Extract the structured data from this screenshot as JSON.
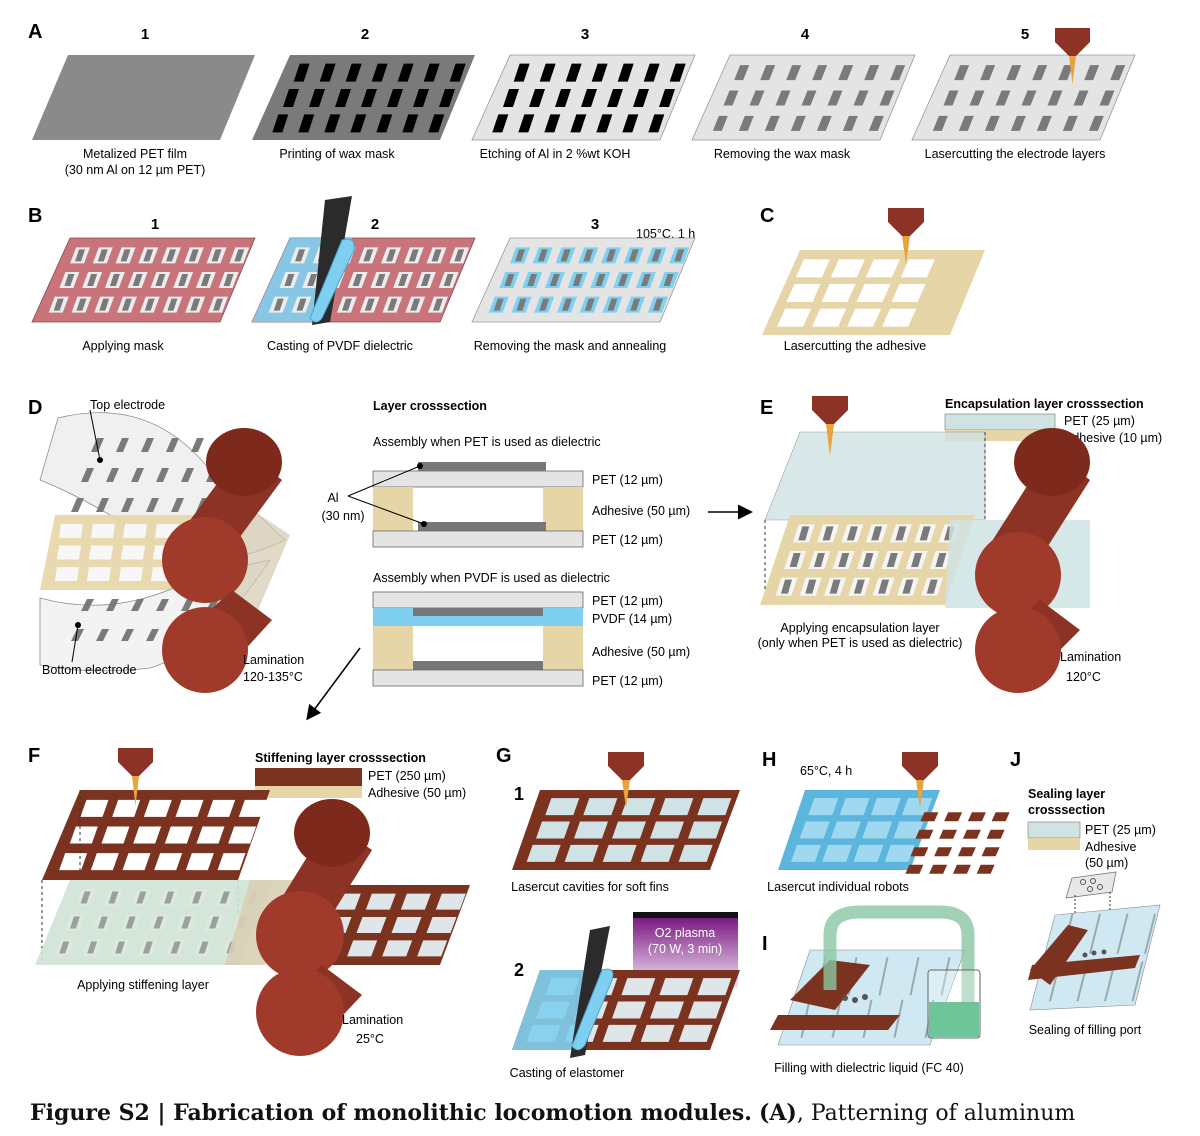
{
  "colors": {
    "metal": "#8a8a8a",
    "wax": "#000000",
    "film": "#e4e4e4",
    "electrode": "#7a7a7a",
    "mask": "#c9737b",
    "pvdf": "#7fcff0",
    "adhesive": "#e6d5a6",
    "stiff": "#7b3320",
    "roller": "#8c3325",
    "encap": "#cfe3e3",
    "plasma": "#7a1a82",
    "liquid": "#6fc59a"
  },
  "panels": {
    "A": {
      "label": "A",
      "steps": [
        {
          "num": "1",
          "caption": [
            "Metalized PET film",
            "(30 nm Al on 12 µm PET)"
          ]
        },
        {
          "num": "2",
          "caption": [
            "Printing of wax mask"
          ]
        },
        {
          "num": "3",
          "caption": [
            "Etching of Al in 2 %wt KOH"
          ]
        },
        {
          "num": "4",
          "caption": [
            "Removing the wax mask"
          ]
        },
        {
          "num": "5",
          "caption": [
            "Lasercutting the electrode layers"
          ]
        }
      ]
    },
    "B": {
      "label": "B",
      "steps": [
        {
          "num": "1",
          "caption": "Applying mask"
        },
        {
          "num": "2",
          "caption": "Casting of PVDF dielectric"
        },
        {
          "num": "3",
          "caption": "Removing the mask and annealing",
          "note": "105°C, 1 h"
        }
      ]
    },
    "C": {
      "label": "C",
      "caption": "Lasercutting the adhesive"
    },
    "D": {
      "label": "D",
      "top_electrode": "Top electrode",
      "bottom_electrode": "Bottom electrode",
      "lamination": [
        "Lamination",
        "120-135°C"
      ],
      "crosssection_title": "Layer crosssection",
      "pet_title": "Assembly when PET is used as dielectric",
      "pvdf_title": "Assembly when PVDF is used as dielectric",
      "al_label": [
        "Al",
        "(30 nm)"
      ],
      "pet_layers": [
        "PET (12 µm)",
        "Adhesive (50 µm)",
        "PET (12 µm)"
      ],
      "pvdf_layers": [
        "PET (12 µm)",
        "PVDF (14 µm)",
        "Adhesive (50 µm)",
        "PET (12 µm)"
      ]
    },
    "E": {
      "label": "E",
      "crosssection_title": "Encapsulation layer crosssection",
      "layers": [
        "PET (25 µm)",
        "Adhesive (10 µm)"
      ],
      "caption": [
        "Applying encapsulation layer",
        "(only when PET is used as dielectric)"
      ],
      "lamination": [
        "Lamination",
        "120°C"
      ]
    },
    "F": {
      "label": "F",
      "crosssection_title": "Stiffening layer crosssection",
      "layers": [
        "PET (250 µm)",
        "Adhesive (50 µm)"
      ],
      "caption": "Applying stiffening layer",
      "lamination": [
        "Lamination",
        "25°C"
      ]
    },
    "G": {
      "label": "G",
      "step1": {
        "num": "1",
        "caption": "Lasercut cavities for soft fins"
      },
      "step2": {
        "num": "2",
        "caption": "Casting of elastomer",
        "plasma": [
          "O2 plasma",
          "(70 W, 3 min)"
        ]
      }
    },
    "H": {
      "label": "H",
      "note": "65°C, 4 h",
      "caption": "Lasercut individual robots"
    },
    "I": {
      "label": "I",
      "caption": "Filling with dielectric liquid (FC 40)"
    },
    "J": {
      "label": "J",
      "title": [
        "Sealing layer",
        "crosssection"
      ],
      "layers": [
        "PET (25 µm)",
        "Adhesive",
        "(50 µm)"
      ],
      "caption": "Sealing of filling port"
    }
  },
  "figure_caption": {
    "label": "Figure S2 | Fabrication of monolithic locomotion modules.",
    "ref": "(A)",
    "text": ", Patterning of aluminum"
  }
}
